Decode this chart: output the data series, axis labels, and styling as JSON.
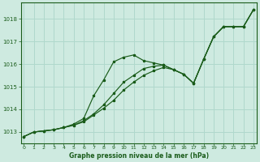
{
  "background_color": "#ceeae0",
  "grid_color": "#b0d8cc",
  "line_color": "#1a5c1a",
  "xlabel": "Graphe pression niveau de la mer (hPa)",
  "ylim": [
    1012.5,
    1018.7
  ],
  "xlim": [
    -0.3,
    23.3
  ],
  "yticks": [
    1013,
    1014,
    1015,
    1016,
    1017,
    1018
  ],
  "xticks": [
    0,
    1,
    2,
    3,
    4,
    5,
    6,
    7,
    8,
    9,
    10,
    11,
    12,
    13,
    14,
    15,
    16,
    17,
    18,
    19,
    20,
    21,
    22,
    23
  ],
  "line1_x": [
    0,
    1,
    2,
    3,
    4,
    5,
    6,
    7,
    8,
    9,
    10,
    11,
    12,
    13,
    14,
    15,
    16,
    17,
    18,
    19,
    20,
    21,
    22,
    23
  ],
  "line1_y": [
    1012.8,
    1013.0,
    1013.05,
    1013.1,
    1013.2,
    1013.35,
    1013.6,
    1014.6,
    1015.3,
    1016.1,
    1016.3,
    1016.4,
    1016.15,
    1016.05,
    1015.95,
    1015.75,
    1015.55,
    1015.15,
    1016.2,
    1017.2,
    1017.65,
    1017.65,
    1017.65,
    1018.4
  ],
  "line2_x": [
    0,
    1,
    2,
    3,
    4,
    5,
    6,
    7,
    8,
    9,
    10,
    11,
    12,
    13,
    14,
    15,
    16,
    17,
    18,
    19,
    20,
    21,
    22,
    23
  ],
  "line2_y": [
    1012.8,
    1013.0,
    1013.05,
    1013.1,
    1013.2,
    1013.3,
    1013.5,
    1013.8,
    1014.2,
    1014.7,
    1015.2,
    1015.5,
    1015.8,
    1015.9,
    1015.95,
    1015.75,
    1015.55,
    1015.15,
    1016.2,
    1017.2,
    1017.65,
    1017.65,
    1017.65,
    1018.4
  ],
  "line3_x": [
    0,
    1,
    2,
    3,
    4,
    5,
    6,
    7,
    8,
    9,
    10,
    11,
    12,
    13,
    14,
    15,
    16,
    17,
    18,
    19,
    20,
    21,
    22,
    23
  ],
  "line3_y": [
    1012.8,
    1013.0,
    1013.05,
    1013.1,
    1013.2,
    1013.3,
    1013.45,
    1013.75,
    1014.05,
    1014.4,
    1014.85,
    1015.2,
    1015.5,
    1015.7,
    1015.85,
    1015.75,
    1015.55,
    1015.15,
    1016.2,
    1017.2,
    1017.65,
    1017.65,
    1017.65,
    1018.4
  ]
}
